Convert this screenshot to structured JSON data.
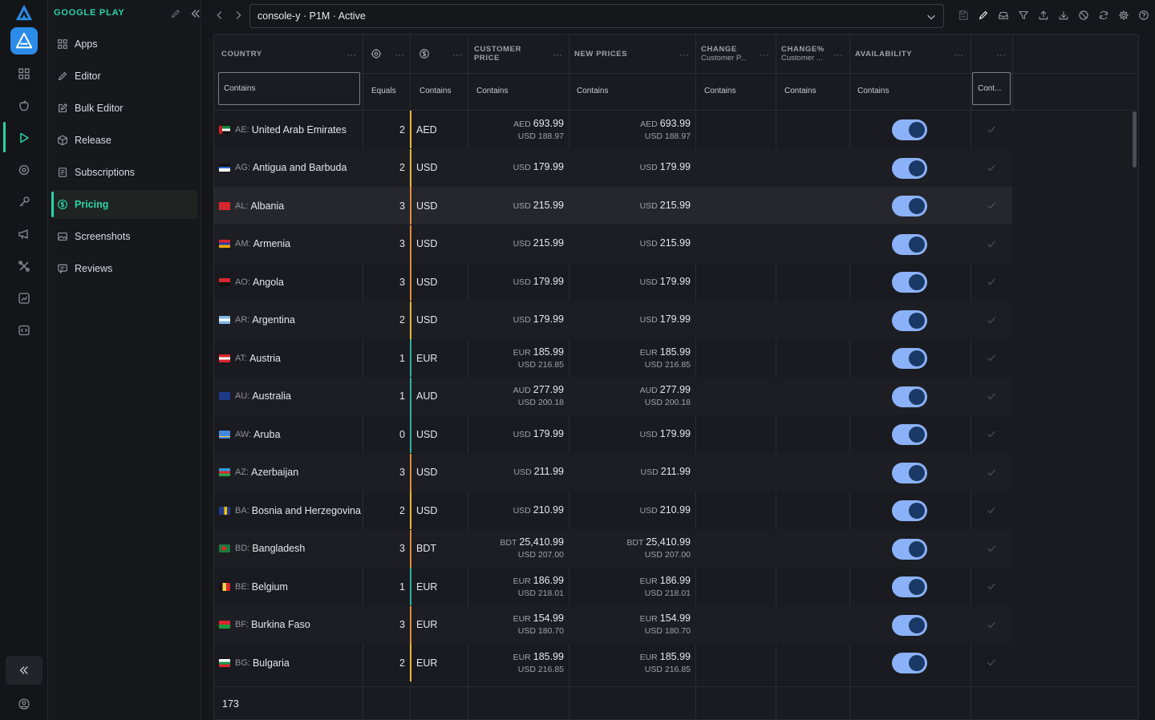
{
  "sidebar": {
    "title": "GOOGLE PLAY",
    "items": [
      {
        "label": "Apps",
        "icon": "apps-icon",
        "active": false
      },
      {
        "label": "Editor",
        "icon": "pencil-icon",
        "active": false
      },
      {
        "label": "Bulk Editor",
        "icon": "edit-square-icon",
        "active": false
      },
      {
        "label": "Release",
        "icon": "package-icon",
        "active": false
      },
      {
        "label": "Subscriptions",
        "icon": "receipt-icon",
        "active": false
      },
      {
        "label": "Pricing",
        "icon": "dollar-circle-icon",
        "active": true
      },
      {
        "label": "Screenshots",
        "icon": "image-icon",
        "active": false
      },
      {
        "label": "Reviews",
        "icon": "review-icon",
        "active": false
      }
    ]
  },
  "topbar": {
    "selector_value": "console-y · P1M · Active"
  },
  "grid": {
    "columns": [
      {
        "title": "COUNTRY",
        "sub": "",
        "filter": "Contains"
      },
      {
        "title": "",
        "sub": "",
        "filter": "Equals"
      },
      {
        "title": "",
        "sub": "",
        "filter": "Contains"
      },
      {
        "title": "CUSTOMER",
        "sub": "PRICE",
        "filter": "Contains"
      },
      {
        "title": "NEW PRICES",
        "sub": "",
        "filter": "Contains"
      },
      {
        "title": "CHANGE",
        "sub": "Customer P...",
        "filter": "Contains"
      },
      {
        "title": "CHANGE%",
        "sub": "Customer ...",
        "filter": "Contains"
      },
      {
        "title": "AVAILABILITY",
        "sub": "",
        "filter": "Contains"
      },
      {
        "title": "",
        "sub": "",
        "filter": "Cont..."
      }
    ],
    "rows": [
      {
        "code": "AE:",
        "name": "United Arab Emirates",
        "tier": "2",
        "currency": "AED",
        "cp_cur": "AED",
        "cp_val": "693.99",
        "cp_usd": "USD 188.97",
        "np_cur": "AED",
        "np_val": "693.99",
        "np_usd": "USD 188.97",
        "available": true
      },
      {
        "code": "AG:",
        "name": "Antigua and Barbuda",
        "tier": "2",
        "currency": "USD",
        "cp_cur": "USD",
        "cp_val": "179.99",
        "cp_usd": "",
        "np_cur": "USD",
        "np_val": "179.99",
        "np_usd": "",
        "available": true
      },
      {
        "code": "AL:",
        "name": "Albania",
        "tier": "3",
        "currency": "USD",
        "cp_cur": "USD",
        "cp_val": "215.99",
        "cp_usd": "",
        "np_cur": "USD",
        "np_val": "215.99",
        "np_usd": "",
        "available": true
      },
      {
        "code": "AM:",
        "name": "Armenia",
        "tier": "3",
        "currency": "USD",
        "cp_cur": "USD",
        "cp_val": "215.99",
        "cp_usd": "",
        "np_cur": "USD",
        "np_val": "215.99",
        "np_usd": "",
        "available": true
      },
      {
        "code": "AO:",
        "name": "Angola",
        "tier": "3",
        "currency": "USD",
        "cp_cur": "USD",
        "cp_val": "179.99",
        "cp_usd": "",
        "np_cur": "USD",
        "np_val": "179.99",
        "np_usd": "",
        "available": true
      },
      {
        "code": "AR:",
        "name": "Argentina",
        "tier": "2",
        "currency": "USD",
        "cp_cur": "USD",
        "cp_val": "179.99",
        "cp_usd": "",
        "np_cur": "USD",
        "np_val": "179.99",
        "np_usd": "",
        "available": true
      },
      {
        "code": "AT:",
        "name": "Austria",
        "tier": "1",
        "currency": "EUR",
        "cp_cur": "EUR",
        "cp_val": "185.99",
        "cp_usd": "USD 216.85",
        "np_cur": "EUR",
        "np_val": "185.99",
        "np_usd": "USD 216.85",
        "available": true
      },
      {
        "code": "AU:",
        "name": "Australia",
        "tier": "1",
        "currency": "AUD",
        "cp_cur": "AUD",
        "cp_val": "277.99",
        "cp_usd": "USD 200.18",
        "np_cur": "AUD",
        "np_val": "277.99",
        "np_usd": "USD 200.18",
        "available": true
      },
      {
        "code": "AW:",
        "name": "Aruba",
        "tier": "0",
        "currency": "USD",
        "cp_cur": "USD",
        "cp_val": "179.99",
        "cp_usd": "",
        "np_cur": "USD",
        "np_val": "179.99",
        "np_usd": "",
        "available": true
      },
      {
        "code": "AZ:",
        "name": "Azerbaijan",
        "tier": "3",
        "currency": "USD",
        "cp_cur": "USD",
        "cp_val": "211.99",
        "cp_usd": "",
        "np_cur": "USD",
        "np_val": "211.99",
        "np_usd": "",
        "available": true
      },
      {
        "code": "BA:",
        "name": "Bosnia and Herzegovina",
        "tier": "2",
        "currency": "USD",
        "cp_cur": "USD",
        "cp_val": "210.99",
        "cp_usd": "",
        "np_cur": "USD",
        "np_val": "210.99",
        "np_usd": "",
        "available": true
      },
      {
        "code": "BD:",
        "name": "Bangladesh",
        "tier": "3",
        "currency": "BDT",
        "cp_cur": "BDT",
        "cp_val": "25,410.99",
        "cp_usd": "USD 207.00",
        "np_cur": "BDT",
        "np_val": "25,410.99",
        "np_usd": "USD 207.00",
        "available": true
      },
      {
        "code": "BE:",
        "name": "Belgium",
        "tier": "1",
        "currency": "EUR",
        "cp_cur": "EUR",
        "cp_val": "186.99",
        "cp_usd": "USD 218.01",
        "np_cur": "EUR",
        "np_val": "186.99",
        "np_usd": "USD 218.01",
        "available": true
      },
      {
        "code": "BF:",
        "name": "Burkina Faso",
        "tier": "3",
        "currency": "EUR",
        "cp_cur": "EUR",
        "cp_val": "154.99",
        "cp_usd": "USD 180.70",
        "np_cur": "EUR",
        "np_val": "154.99",
        "np_usd": "USD 180.70",
        "available": true
      },
      {
        "code": "BG:",
        "name": "Bulgaria",
        "tier": "2",
        "currency": "EUR",
        "cp_cur": "EUR",
        "cp_val": "185.99",
        "cp_usd": "USD 216.85",
        "np_cur": "EUR",
        "np_val": "185.99",
        "np_usd": "USD 216.85",
        "available": true
      }
    ],
    "row_count": "173"
  },
  "colors": {
    "accent": "#2bd4a8",
    "toggle_on": "#8bb2f9",
    "tier_0": "#2bb5a0",
    "tier_1": "#2bb5a0",
    "tier_2": "#e8b93a",
    "tier_3": "#e88a3a"
  }
}
